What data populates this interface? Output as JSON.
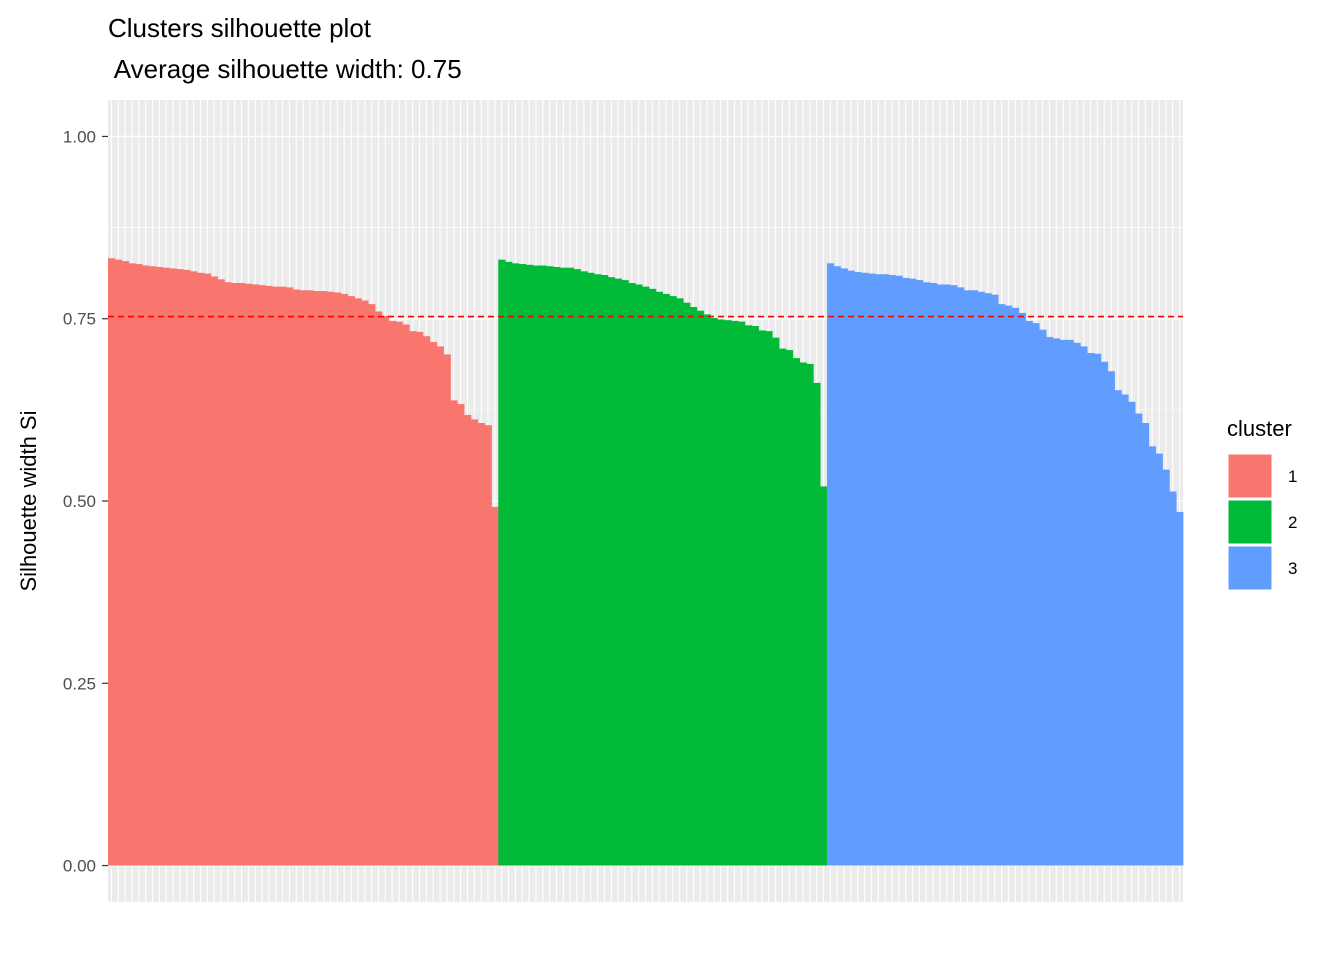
{
  "chart_data": {
    "type": "bar",
    "title": "Clusters silhouette plot",
    "subtitle": " Average silhouette width: 0.75",
    "xlabel": "",
    "ylabel": "Silhouette width Si",
    "ylim": [
      -0.05,
      1.05
    ],
    "yticks": [
      "0.00",
      "0.25",
      "0.50",
      "0.75",
      "1.00"
    ],
    "ytick_values": [
      0,
      0.25,
      0.5,
      0.75,
      1.0
    ],
    "grid": true,
    "average_line": {
      "value": 0.753,
      "color": "#ff0000",
      "style": "dashed"
    },
    "legend": {
      "title": "cluster",
      "position": "right"
    },
    "series": [
      {
        "name": "1",
        "color": "#F8766D",
        "values": [
          0.833,
          0.831,
          0.829,
          0.826,
          0.825,
          0.823,
          0.822,
          0.821,
          0.82,
          0.819,
          0.818,
          0.817,
          0.815,
          0.813,
          0.812,
          0.808,
          0.804,
          0.8,
          0.799,
          0.799,
          0.798,
          0.797,
          0.796,
          0.795,
          0.794,
          0.794,
          0.793,
          0.79,
          0.789,
          0.789,
          0.788,
          0.788,
          0.787,
          0.786,
          0.784,
          0.781,
          0.778,
          0.775,
          0.77,
          0.76,
          0.754,
          0.747,
          0.746,
          0.742,
          0.733,
          0.732,
          0.726,
          0.718,
          0.712,
          0.701,
          0.638,
          0.633,
          0.618,
          0.612,
          0.607,
          0.604,
          0.492
        ]
      },
      {
        "name": "2",
        "color": "#00BA38",
        "values": [
          0.831,
          0.828,
          0.826,
          0.825,
          0.824,
          0.823,
          0.823,
          0.822,
          0.821,
          0.82,
          0.82,
          0.818,
          0.815,
          0.813,
          0.811,
          0.81,
          0.807,
          0.805,
          0.803,
          0.799,
          0.797,
          0.794,
          0.791,
          0.787,
          0.784,
          0.781,
          0.778,
          0.772,
          0.766,
          0.761,
          0.756,
          0.751,
          0.749,
          0.748,
          0.747,
          0.746,
          0.741,
          0.74,
          0.734,
          0.733,
          0.724,
          0.709,
          0.707,
          0.696,
          0.69,
          0.688,
          0.662,
          0.52
        ]
      },
      {
        "name": "3",
        "color": "#619CFF",
        "values": [
          0.826,
          0.822,
          0.819,
          0.816,
          0.814,
          0.813,
          0.812,
          0.811,
          0.811,
          0.81,
          0.809,
          0.806,
          0.805,
          0.803,
          0.8,
          0.799,
          0.797,
          0.797,
          0.796,
          0.793,
          0.789,
          0.789,
          0.787,
          0.785,
          0.783,
          0.77,
          0.768,
          0.765,
          0.758,
          0.747,
          0.744,
          0.735,
          0.725,
          0.723,
          0.721,
          0.721,
          0.717,
          0.712,
          0.703,
          0.702,
          0.691,
          0.678,
          0.652,
          0.646,
          0.636,
          0.62,
          0.607,
          0.575,
          0.565,
          0.543,
          0.513,
          0.485
        ]
      }
    ]
  }
}
